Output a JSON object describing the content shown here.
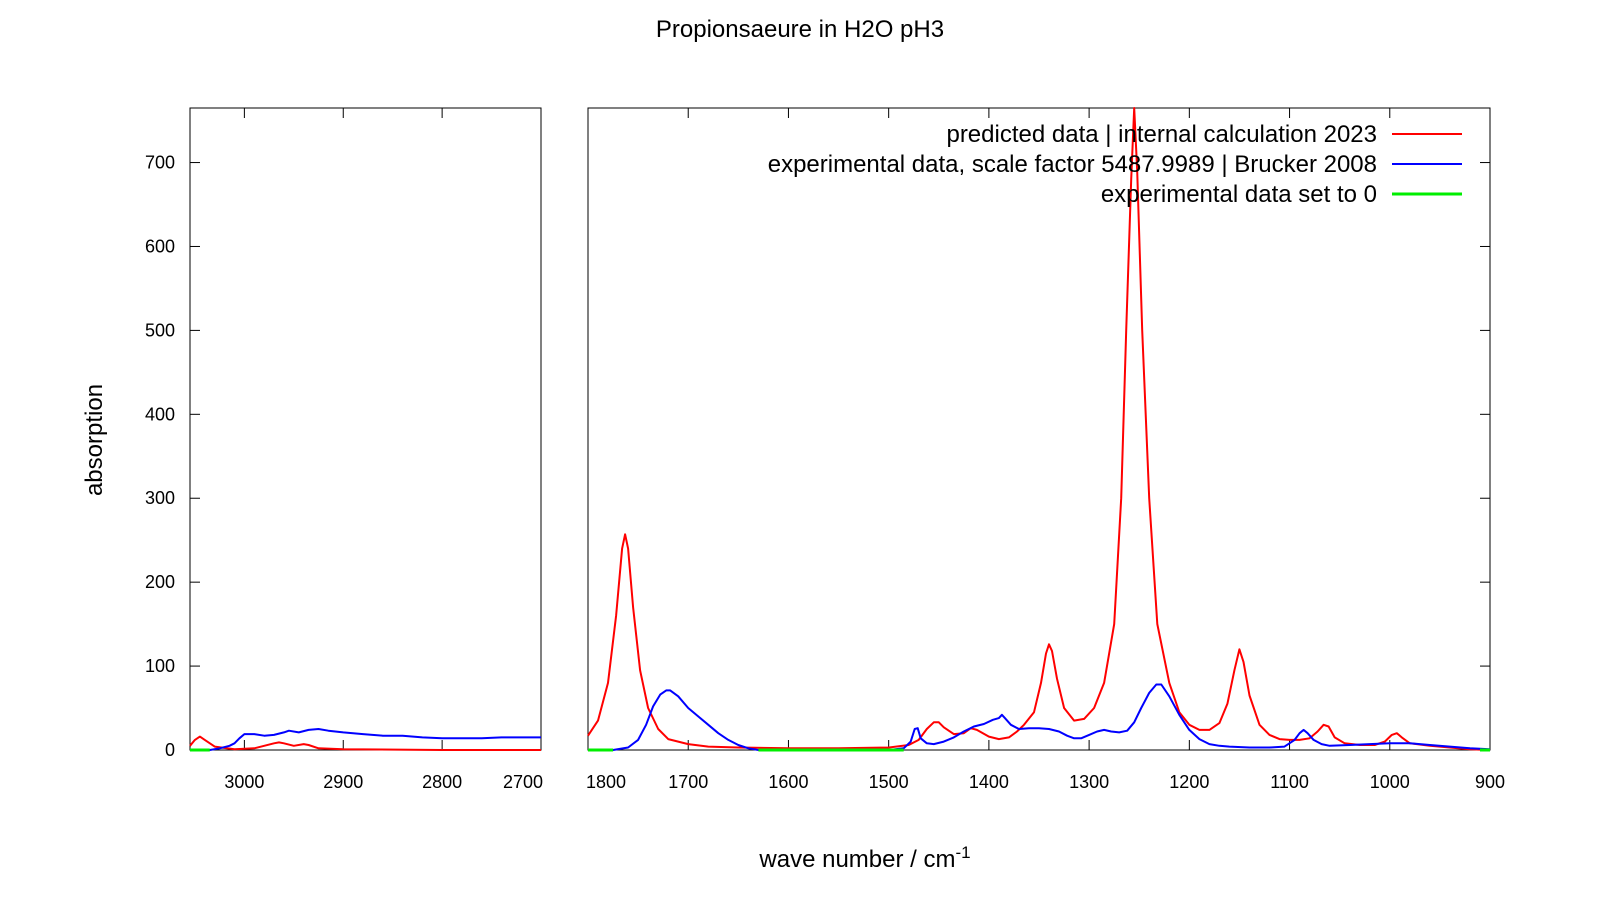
{
  "chart_data": {
    "type": "line",
    "title": "Propionsaeure in H2O pH3",
    "xlabel": "wave number / cm",
    "xlabel_superscript": "-1",
    "ylabel": "absorption",
    "ylim": [
      0,
      765
    ],
    "y_ticks": [
      0,
      100,
      200,
      300,
      400,
      500,
      600,
      700
    ],
    "panels": [
      {
        "xlim": [
          3055,
          2700
        ],
        "x_ticks": [
          3000,
          2900,
          2800,
          2700
        ]
      },
      {
        "xlim": [
          1800,
          900
        ],
        "x_ticks": [
          1800,
          1700,
          1600,
          1500,
          1400,
          1300,
          1200,
          1100,
          1000,
          900
        ]
      }
    ],
    "legend_position": "top-right",
    "grid": false,
    "series": [
      {
        "name": "predicted data | internal calculation 2023",
        "color": "#ff0000",
        "points": [
          [
            3055,
            5
          ],
          [
            3050,
            12
          ],
          [
            3045,
            16
          ],
          [
            3040,
            12
          ],
          [
            3030,
            4
          ],
          [
            3010,
            1
          ],
          [
            2990,
            2
          ],
          [
            2980,
            5
          ],
          [
            2970,
            8
          ],
          [
            2965,
            9
          ],
          [
            2960,
            8
          ],
          [
            2950,
            5
          ],
          [
            2940,
            7
          ],
          [
            2935,
            6
          ],
          [
            2925,
            2
          ],
          [
            2900,
            1
          ],
          [
            2800,
            0
          ],
          [
            2700,
            0
          ],
          [
            1800,
            17
          ],
          [
            1790,
            35
          ],
          [
            1780,
            80
          ],
          [
            1772,
            160
          ],
          [
            1766,
            240
          ],
          [
            1763,
            257
          ],
          [
            1760,
            240
          ],
          [
            1755,
            170
          ],
          [
            1748,
            95
          ],
          [
            1740,
            50
          ],
          [
            1730,
            25
          ],
          [
            1720,
            13
          ],
          [
            1700,
            7
          ],
          [
            1680,
            4
          ],
          [
            1650,
            3
          ],
          [
            1600,
            2
          ],
          [
            1550,
            2
          ],
          [
            1500,
            3
          ],
          [
            1480,
            6
          ],
          [
            1470,
            12
          ],
          [
            1462,
            25
          ],
          [
            1455,
            33
          ],
          [
            1450,
            33
          ],
          [
            1445,
            27
          ],
          [
            1435,
            19
          ],
          [
            1425,
            20
          ],
          [
            1418,
            26
          ],
          [
            1412,
            24
          ],
          [
            1400,
            16
          ],
          [
            1390,
            13
          ],
          [
            1380,
            15
          ],
          [
            1372,
            22
          ],
          [
            1365,
            30
          ],
          [
            1355,
            45
          ],
          [
            1348,
            80
          ],
          [
            1343,
            115
          ],
          [
            1340,
            126
          ],
          [
            1337,
            118
          ],
          [
            1332,
            85
          ],
          [
            1325,
            50
          ],
          [
            1315,
            35
          ],
          [
            1305,
            37
          ],
          [
            1295,
            50
          ],
          [
            1285,
            80
          ],
          [
            1275,
            150
          ],
          [
            1268,
            300
          ],
          [
            1263,
            500
          ],
          [
            1258,
            680
          ],
          [
            1255,
            765
          ],
          [
            1252,
            690
          ],
          [
            1247,
            500
          ],
          [
            1240,
            300
          ],
          [
            1232,
            150
          ],
          [
            1220,
            80
          ],
          [
            1210,
            45
          ],
          [
            1200,
            30
          ],
          [
            1190,
            24
          ],
          [
            1180,
            24
          ],
          [
            1170,
            32
          ],
          [
            1162,
            55
          ],
          [
            1155,
            95
          ],
          [
            1150,
            120
          ],
          [
            1146,
            105
          ],
          [
            1140,
            65
          ],
          [
            1130,
            30
          ],
          [
            1120,
            18
          ],
          [
            1110,
            13
          ],
          [
            1100,
            12
          ],
          [
            1090,
            12
          ],
          [
            1080,
            14
          ],
          [
            1072,
            22
          ],
          [
            1066,
            30
          ],
          [
            1061,
            28
          ],
          [
            1055,
            15
          ],
          [
            1045,
            8
          ],
          [
            1030,
            6
          ],
          [
            1015,
            6
          ],
          [
            1005,
            10
          ],
          [
            998,
            18
          ],
          [
            993,
            20
          ],
          [
            988,
            15
          ],
          [
            980,
            8
          ],
          [
            960,
            5
          ],
          [
            940,
            3
          ],
          [
            920,
            1
          ],
          [
            900,
            0
          ]
        ]
      },
      {
        "name": "experimental data, scale factor 5487.9989 | Brucker 2008",
        "color": "#0000ff",
        "points": [
          [
            3055,
            0
          ],
          [
            3035,
            0
          ],
          [
            3025,
            2
          ],
          [
            3015,
            5
          ],
          [
            3010,
            8
          ],
          [
            3005,
            14
          ],
          [
            3000,
            19
          ],
          [
            2990,
            19
          ],
          [
            2980,
            17
          ],
          [
            2970,
            18
          ],
          [
            2960,
            21
          ],
          [
            2955,
            23
          ],
          [
            2945,
            21
          ],
          [
            2935,
            24
          ],
          [
            2925,
            25
          ],
          [
            2915,
            23
          ],
          [
            2900,
            21
          ],
          [
            2880,
            19
          ],
          [
            2860,
            17
          ],
          [
            2840,
            17
          ],
          [
            2820,
            15
          ],
          [
            2800,
            14
          ],
          [
            2780,
            14
          ],
          [
            2760,
            14
          ],
          [
            2740,
            15
          ],
          [
            2720,
            15
          ],
          [
            2700,
            15
          ],
          [
            1800,
            0
          ],
          [
            1775,
            0
          ],
          [
            1760,
            3
          ],
          [
            1750,
            12
          ],
          [
            1742,
            30
          ],
          [
            1735,
            52
          ],
          [
            1728,
            66
          ],
          [
            1722,
            71
          ],
          [
            1718,
            71
          ],
          [
            1710,
            64
          ],
          [
            1700,
            50
          ],
          [
            1690,
            40
          ],
          [
            1680,
            30
          ],
          [
            1670,
            20
          ],
          [
            1660,
            12
          ],
          [
            1650,
            6
          ],
          [
            1640,
            2
          ],
          [
            1630,
            0
          ],
          [
            1550,
            0
          ],
          [
            1500,
            0
          ],
          [
            1485,
            2
          ],
          [
            1478,
            10
          ],
          [
            1474,
            25
          ],
          [
            1471,
            26
          ],
          [
            1468,
            14
          ],
          [
            1462,
            8
          ],
          [
            1455,
            7
          ],
          [
            1445,
            10
          ],
          [
            1435,
            15
          ],
          [
            1425,
            22
          ],
          [
            1415,
            28
          ],
          [
            1405,
            31
          ],
          [
            1396,
            36
          ],
          [
            1390,
            38
          ],
          [
            1387,
            42
          ],
          [
            1384,
            38
          ],
          [
            1378,
            30
          ],
          [
            1370,
            25
          ],
          [
            1360,
            26
          ],
          [
            1350,
            26
          ],
          [
            1340,
            25
          ],
          [
            1330,
            22
          ],
          [
            1322,
            17
          ],
          [
            1315,
            14
          ],
          [
            1308,
            14
          ],
          [
            1300,
            18
          ],
          [
            1292,
            22
          ],
          [
            1285,
            24
          ],
          [
            1278,
            22
          ],
          [
            1270,
            21
          ],
          [
            1262,
            23
          ],
          [
            1255,
            33
          ],
          [
            1248,
            50
          ],
          [
            1240,
            68
          ],
          [
            1233,
            78
          ],
          [
            1228,
            78
          ],
          [
            1220,
            64
          ],
          [
            1210,
            42
          ],
          [
            1200,
            24
          ],
          [
            1190,
            13
          ],
          [
            1180,
            7
          ],
          [
            1170,
            5
          ],
          [
            1160,
            4
          ],
          [
            1140,
            3
          ],
          [
            1120,
            3
          ],
          [
            1105,
            4
          ],
          [
            1095,
            12
          ],
          [
            1090,
            20
          ],
          [
            1086,
            24
          ],
          [
            1082,
            20
          ],
          [
            1076,
            12
          ],
          [
            1068,
            7
          ],
          [
            1060,
            5
          ],
          [
            1040,
            6
          ],
          [
            1020,
            7
          ],
          [
            1000,
            8
          ],
          [
            980,
            8
          ],
          [
            960,
            6
          ],
          [
            940,
            4
          ],
          [
            920,
            2
          ],
          [
            900,
            1
          ]
        ]
      },
      {
        "name": "experimental data set to 0",
        "color": "#00ee00",
        "segments": [
          [
            [
              3055,
              0
            ],
            [
              3035,
              0
            ]
          ],
          [
            [
              1800,
              0
            ],
            [
              1775,
              0
            ]
          ],
          [
            [
              1630,
              0
            ],
            [
              1485,
              0
            ]
          ],
          [
            [
              910,
              0
            ],
            [
              900,
              0
            ]
          ]
        ]
      }
    ]
  }
}
